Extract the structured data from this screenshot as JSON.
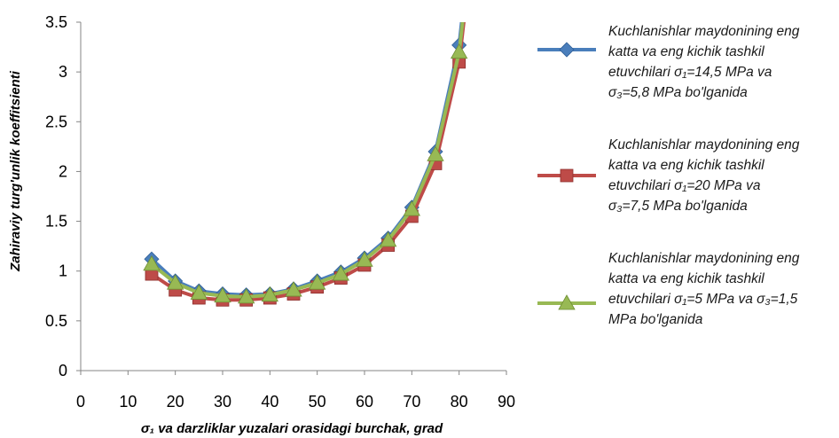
{
  "chart_data": {
    "type": "line",
    "xlabel": "σ₁ va darzliklar yuzalari orasidagi burchak, grad",
    "ylabel": "Zahiraviy turg'unlik koeffitsienti",
    "xlim": [
      0,
      90
    ],
    "ylim": [
      0,
      3.5
    ],
    "xticks": [
      "0",
      "10",
      "20",
      "30",
      "40",
      "50",
      "60",
      "70",
      "80",
      "90"
    ],
    "yticks": [
      "0",
      "0.5",
      "1",
      "1.5",
      "2",
      "2.5",
      "3",
      "3.5"
    ],
    "grid": false,
    "legend_position": "right",
    "x": [
      15,
      20,
      25,
      30,
      35,
      40,
      45,
      50,
      55,
      60,
      65,
      70,
      75,
      80
    ],
    "series": [
      {
        "name": "Kuchlanishlar maydonining eng katta va eng kichik tashkil etuvchilari σ₁=14,5 MPa va σ₃=5,8 MPa bo'lganida",
        "color": "#4a7ebb",
        "marker": "diamond",
        "values": [
          1.12,
          0.9,
          0.8,
          0.77,
          0.76,
          0.77,
          0.82,
          0.9,
          0.99,
          1.13,
          1.33,
          1.64,
          2.2,
          3.27
        ]
      },
      {
        "name": "Kuchlanishlar maydonining eng katta va eng kichik tashkil etuvchilari σ₁=20 MPa va σ₃=7,5 MPa bo'lganida",
        "color": "#be4b48",
        "marker": "square",
        "values": [
          0.97,
          0.81,
          0.73,
          0.71,
          0.71,
          0.73,
          0.77,
          0.84,
          0.93,
          1.06,
          1.26,
          1.55,
          2.08,
          3.1
        ]
      },
      {
        "name": "Kuchlanishlar maydonining eng katta va eng kichik tashkil etuvchilari σ₁=5 MPa va σ₃=1,5 MPa bo'lganida",
        "color": "#98b954",
        "marker": "triangle",
        "values": [
          1.07,
          0.88,
          0.78,
          0.75,
          0.74,
          0.76,
          0.81,
          0.88,
          0.97,
          1.11,
          1.31,
          1.62,
          2.17,
          3.2
        ]
      }
    ]
  },
  "legend": [
    {
      "text": "Kuchlanishlar maydonining eng\nkatta va eng kichik tashkil\netuvchilari σ₁=14,5 MPa va\nσ₃=5,8 MPa bo'lganida"
    },
    {
      "text": "Kuchlanishlar maydonining eng\nkatta va eng kichik tashkil\netuvchilari σ₁=20 MPa va\nσ₃=7,5 MPa bo'lganida"
    },
    {
      "text": "Kuchlanishlar maydonining eng\nkatta va eng kichik tashkil\netuvchilari σ₁=5 MPa va σ₃=1,5\nMPa bo'lganida"
    }
  ]
}
